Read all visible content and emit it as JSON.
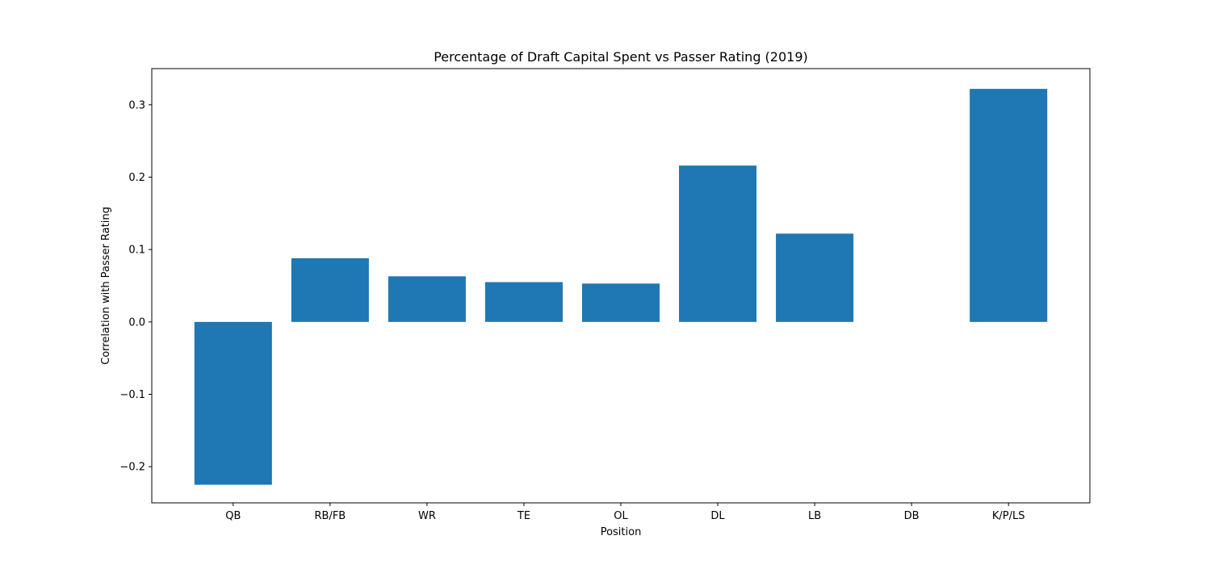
{
  "chart_data": {
    "type": "bar",
    "title": "Percentage of Draft Capital Spent vs Passer Rating (2019)",
    "xlabel": "Position",
    "ylabel": "Correlation with Passer Rating",
    "categories": [
      "QB",
      "RB/FB",
      "WR",
      "TE",
      "OL",
      "DL",
      "LB",
      "DB",
      "K/P/LS"
    ],
    "values": [
      -0.225,
      0.088,
      0.063,
      0.055,
      0.053,
      0.216,
      0.122,
      0.0,
      0.322
    ],
    "ylim": [
      -0.25,
      0.35
    ],
    "yticks": [
      -0.2,
      -0.1,
      0.0,
      0.1,
      0.2,
      0.3
    ],
    "ytick_labels": [
      "−0.2",
      "−0.1",
      "0.0",
      "0.1",
      "0.2",
      "0.3"
    ],
    "bar_color": "#1f77b4",
    "grid": false,
    "legend": false
  }
}
